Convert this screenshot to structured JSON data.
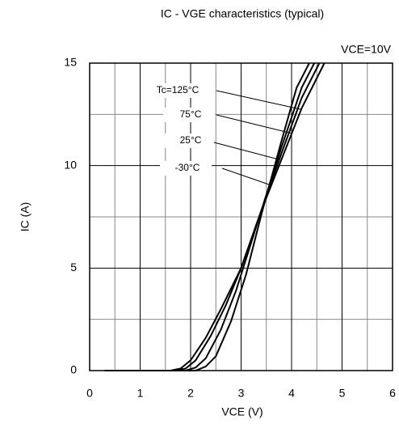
{
  "chart_data": {
    "type": "line",
    "title": "IC - VGE characteristics (typical)",
    "annotation": "VCE=10V",
    "xlabel": "VCE (V)",
    "ylabel": "IC (A)",
    "xlim": [
      0,
      6
    ],
    "ylim": [
      0,
      15
    ],
    "xticks": [
      0,
      1,
      2,
      3,
      4,
      5,
      6
    ],
    "yticks": [
      0,
      5,
      10,
      15
    ],
    "minor_xticks": [
      0.5,
      1.5,
      2.5,
      3.5,
      4.5,
      5.5
    ],
    "minor_yticks": [
      2.5,
      7.5,
      12.5
    ],
    "grid": true,
    "series": [
      {
        "name": "Tc=125°C",
        "color": "#000000",
        "x": [
          0.3,
          1.6,
          1.8,
          2.0,
          2.3,
          2.6,
          3.0,
          3.4,
          3.8,
          4.2,
          4.65
        ],
        "values": [
          0,
          0,
          0.1,
          0.5,
          1.6,
          3.0,
          5.0,
          7.8,
          10.3,
          12.8,
          15
        ]
      },
      {
        "name": "75°C",
        "color": "#000000",
        "x": [
          0.3,
          1.7,
          1.9,
          2.1,
          2.4,
          2.7,
          3.0,
          3.4,
          3.8,
          4.2,
          4.55
        ],
        "values": [
          0,
          0,
          0.1,
          0.5,
          1.7,
          3.2,
          5.0,
          7.8,
          10.6,
          13.3,
          15
        ]
      },
      {
        "name": "25°C",
        "color": "#000000",
        "x": [
          0.3,
          1.9,
          2.1,
          2.3,
          2.6,
          2.9,
          3.4,
          3.8,
          4.2,
          4.45
        ],
        "values": [
          0,
          0,
          0.15,
          0.6,
          2.0,
          3.9,
          7.8,
          10.9,
          13.8,
          15
        ]
      },
      {
        "name": "-30°C",
        "color": "#000000",
        "x": [
          0.3,
          2.1,
          2.3,
          2.5,
          2.8,
          3.1,
          3.4,
          3.8,
          4.1,
          4.35
        ],
        "values": [
          0,
          0,
          0.2,
          0.7,
          2.4,
          4.7,
          7.6,
          11.2,
          13.8,
          15
        ]
      }
    ]
  }
}
